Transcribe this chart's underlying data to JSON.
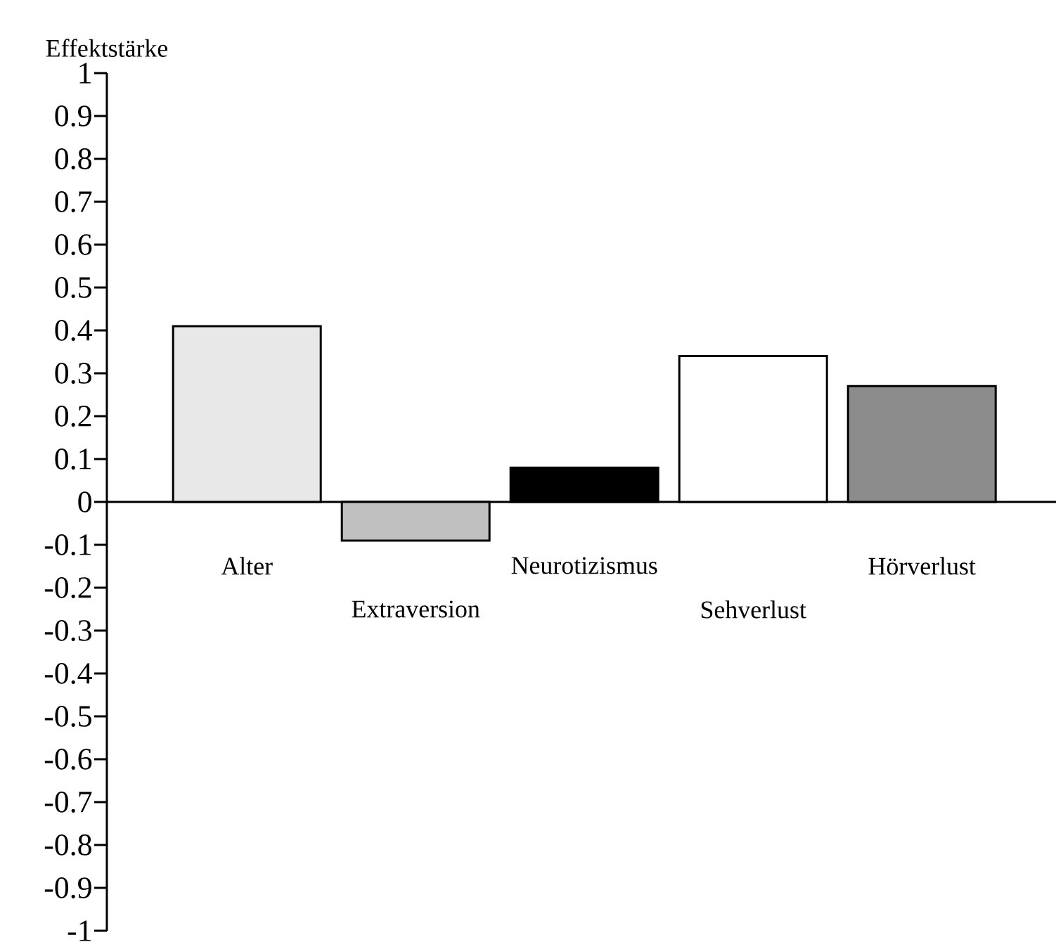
{
  "chart_data": {
    "type": "bar",
    "ylabel": "Effektstärke",
    "categories": [
      "Alter",
      "Extraversion",
      "Neurotizismus",
      "Sehverlust",
      "Hörverlust"
    ],
    "values": [
      0.41,
      -0.09,
      0.08,
      0.34,
      0.27
    ],
    "colors": [
      "#e8e8e8",
      "#c0c0c0",
      "#000000",
      "#ffffff",
      "#8c8c8c"
    ],
    "ylim": [
      -1,
      1
    ],
    "yticks": [
      1,
      0.9,
      0.8,
      0.7,
      0.6,
      0.5,
      0.4,
      0.3,
      0.2,
      0.1,
      0,
      -0.1,
      -0.2,
      -0.3,
      -0.4,
      -0.5,
      -0.6,
      -0.7,
      -0.8,
      -0.9,
      -1
    ]
  }
}
